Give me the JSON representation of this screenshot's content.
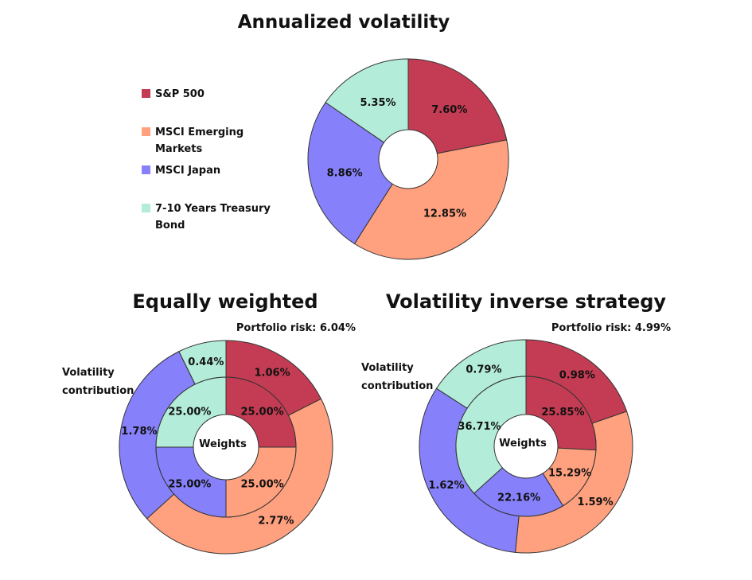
{
  "colors": {
    "sp500": "#c43c53",
    "em": "#ffa07e",
    "japan": "#8680fa",
    "treasury": "#b3ecd9",
    "outline": "#333333"
  },
  "legend": {
    "items": [
      {
        "line1": "S&P 500",
        "line2": "",
        "color": "#c43c53"
      },
      {
        "line1": "MSCI Emerging",
        "line2": "Markets",
        "color": "#ffa07e"
      },
      {
        "line1": "MSCI Japan",
        "line2": "",
        "color": "#8680fa"
      },
      {
        "line1": "7-10 Years Treasury",
        "line2": "Bond",
        "color": "#b3ecd9"
      }
    ]
  },
  "chart_data": [
    {
      "type": "pie",
      "variant": "donut",
      "title": "Annualized volatility",
      "categories": [
        "S&P 500",
        "MSCI Emerging Markets",
        "MSCI Japan",
        "7-10 Years Treasury Bond"
      ],
      "values": [
        7.6,
        12.85,
        8.86,
        5.35
      ],
      "labels": [
        "7.60%",
        "12.85%",
        "8.86%",
        "5.35%"
      ]
    },
    {
      "type": "pie",
      "variant": "nested-donut",
      "title": "Equally weighted",
      "subtitle": "Portfolio risk: 6.04%",
      "center_label": "Weights",
      "outer_label": "Volatility contribution",
      "outer_label_lines": [
        "Volatility",
        "contribution"
      ],
      "categories": [
        "S&P 500",
        "MSCI Emerging Markets",
        "MSCI Japan",
        "7-10 Years Treasury Bond"
      ],
      "series": [
        {
          "ring": "inner",
          "values": [
            25.0,
            25.0,
            25.0,
            25.0
          ],
          "labels": [
            "25.00%",
            "25.00%",
            "25.00%",
            "25.00%"
          ]
        },
        {
          "ring": "outer",
          "values": [
            1.06,
            2.77,
            1.78,
            0.44
          ],
          "labels": [
            "1.06%",
            "2.77%",
            "1.78%",
            "0.44%"
          ]
        }
      ]
    },
    {
      "type": "pie",
      "variant": "nested-donut",
      "title": "Volatility inverse strategy",
      "subtitle": "Portfolio risk: 4.99%",
      "center_label": "Weights",
      "outer_label": "Volatility contribution",
      "outer_label_lines": [
        "Volatility",
        "contribution"
      ],
      "categories": [
        "S&P 500",
        "MSCI Emerging Markets",
        "MSCI Japan",
        "7-10 Years Treasury Bond"
      ],
      "series": [
        {
          "ring": "inner",
          "values": [
            25.85,
            15.29,
            22.16,
            36.71
          ],
          "labels": [
            "25.85%",
            "15.29%",
            "22.16%",
            "36.71%"
          ]
        },
        {
          "ring": "outer",
          "values": [
            0.98,
            1.59,
            1.62,
            0.79
          ],
          "labels": [
            "0.98%",
            "1.59%",
            "1.62%",
            "0.79%"
          ]
        }
      ]
    }
  ]
}
